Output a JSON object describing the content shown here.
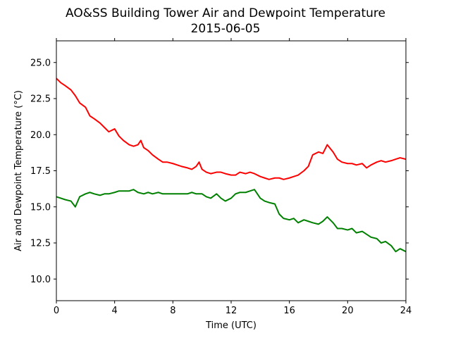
{
  "chart_data": {
    "type": "line",
    "title": "AO&SS Building Tower Air and Dewpoint Temperature",
    "subtitle": "2015-06-05",
    "xlabel": "Time (UTC)",
    "ylabel": "Air and Dewpoint Temperature (°C)",
    "xlim": [
      0,
      24
    ],
    "ylim": [
      8.5,
      26.5
    ],
    "xticks": [
      0,
      4,
      8,
      12,
      16,
      20,
      24
    ],
    "xtick_labels": [
      "0",
      "4",
      "8",
      "12",
      "16",
      "20",
      "24"
    ],
    "yticks": [
      10.0,
      12.5,
      15.0,
      17.5,
      20.0,
      22.5,
      25.0
    ],
    "ytick_labels": [
      "10.0",
      "12.5",
      "15.0",
      "17.5",
      "20.0",
      "22.5",
      "25.0"
    ],
    "grid": false,
    "series": [
      {
        "color": "#ff0000",
        "x": [
          0,
          0.3,
          0.6,
          1.0,
          1.3,
          1.6,
          2.0,
          2.3,
          2.6,
          3.0,
          3.3,
          3.6,
          4.0,
          4.3,
          4.6,
          5.0,
          5.3,
          5.6,
          5.8,
          6.0,
          6.3,
          6.6,
          7.0,
          7.3,
          7.6,
          8.0,
          8.3,
          8.6,
          9.0,
          9.3,
          9.6,
          9.8,
          10.0,
          10.3,
          10.6,
          11.0,
          11.3,
          11.6,
          12.0,
          12.3,
          12.6,
          13.0,
          13.3,
          13.6,
          14.0,
          14.3,
          14.6,
          15.0,
          15.3,
          15.6,
          16.0,
          16.3,
          16.6,
          17.0,
          17.3,
          17.6,
          18.0,
          18.3,
          18.6,
          19.0,
          19.3,
          19.6,
          20.0,
          20.3,
          20.6,
          21.0,
          21.3,
          21.6,
          22.0,
          22.3,
          22.6,
          23.0,
          23.3,
          23.6,
          24.0
        ],
        "y": [
          23.9,
          23.6,
          23.4,
          23.1,
          22.7,
          22.2,
          21.9,
          21.3,
          21.1,
          20.8,
          20.5,
          20.2,
          20.4,
          19.9,
          19.6,
          19.3,
          19.2,
          19.3,
          19.6,
          19.1,
          18.9,
          18.6,
          18.3,
          18.1,
          18.1,
          18.0,
          17.9,
          17.8,
          17.7,
          17.6,
          17.8,
          18.1,
          17.6,
          17.4,
          17.3,
          17.4,
          17.4,
          17.3,
          17.2,
          17.2,
          17.4,
          17.3,
          17.4,
          17.3,
          17.1,
          17.0,
          16.9,
          17.0,
          17.0,
          16.9,
          17.0,
          17.1,
          17.2,
          17.5,
          17.8,
          18.6,
          18.8,
          18.7,
          19.3,
          18.8,
          18.3,
          18.1,
          18.0,
          18.0,
          17.9,
          18.0,
          17.7,
          17.9,
          18.1,
          18.2,
          18.1,
          18.2,
          18.3,
          18.4,
          18.3
        ]
      },
      {
        "color": "#008000",
        "x": [
          0,
          0.3,
          0.6,
          1.0,
          1.3,
          1.6,
          2.0,
          2.3,
          2.6,
          3.0,
          3.3,
          3.6,
          4.0,
          4.3,
          4.6,
          5.0,
          5.3,
          5.6,
          6.0,
          6.3,
          6.6,
          7.0,
          7.3,
          7.6,
          8.0,
          8.3,
          8.6,
          9.0,
          9.3,
          9.6,
          10.0,
          10.3,
          10.6,
          11.0,
          11.3,
          11.6,
          12.0,
          12.3,
          12.6,
          13.0,
          13.3,
          13.6,
          14.0,
          14.3,
          14.6,
          15.0,
          15.3,
          15.6,
          16.0,
          16.3,
          16.6,
          17.0,
          17.3,
          17.6,
          18.0,
          18.3,
          18.6,
          19.0,
          19.3,
          19.6,
          20.0,
          20.3,
          20.6,
          21.0,
          21.3,
          21.6,
          22.0,
          22.3,
          22.6,
          23.0,
          23.3,
          23.6,
          24.0
        ],
        "y": [
          15.7,
          15.6,
          15.5,
          15.4,
          15.0,
          15.7,
          15.9,
          16.0,
          15.9,
          15.8,
          15.9,
          15.9,
          16.0,
          16.1,
          16.1,
          16.1,
          16.2,
          16.0,
          15.9,
          16.0,
          15.9,
          16.0,
          15.9,
          15.9,
          15.9,
          15.9,
          15.9,
          15.9,
          16.0,
          15.9,
          15.9,
          15.7,
          15.6,
          15.9,
          15.6,
          15.4,
          15.6,
          15.9,
          16.0,
          16.0,
          16.1,
          16.2,
          15.6,
          15.4,
          15.3,
          15.2,
          14.5,
          14.2,
          14.1,
          14.2,
          13.9,
          14.1,
          14.0,
          13.9,
          13.8,
          14.0,
          14.3,
          13.9,
          13.5,
          13.5,
          13.4,
          13.5,
          13.2,
          13.3,
          13.1,
          12.9,
          12.8,
          12.5,
          12.6,
          12.3,
          11.9,
          12.1,
          11.9
        ]
      }
    ]
  }
}
